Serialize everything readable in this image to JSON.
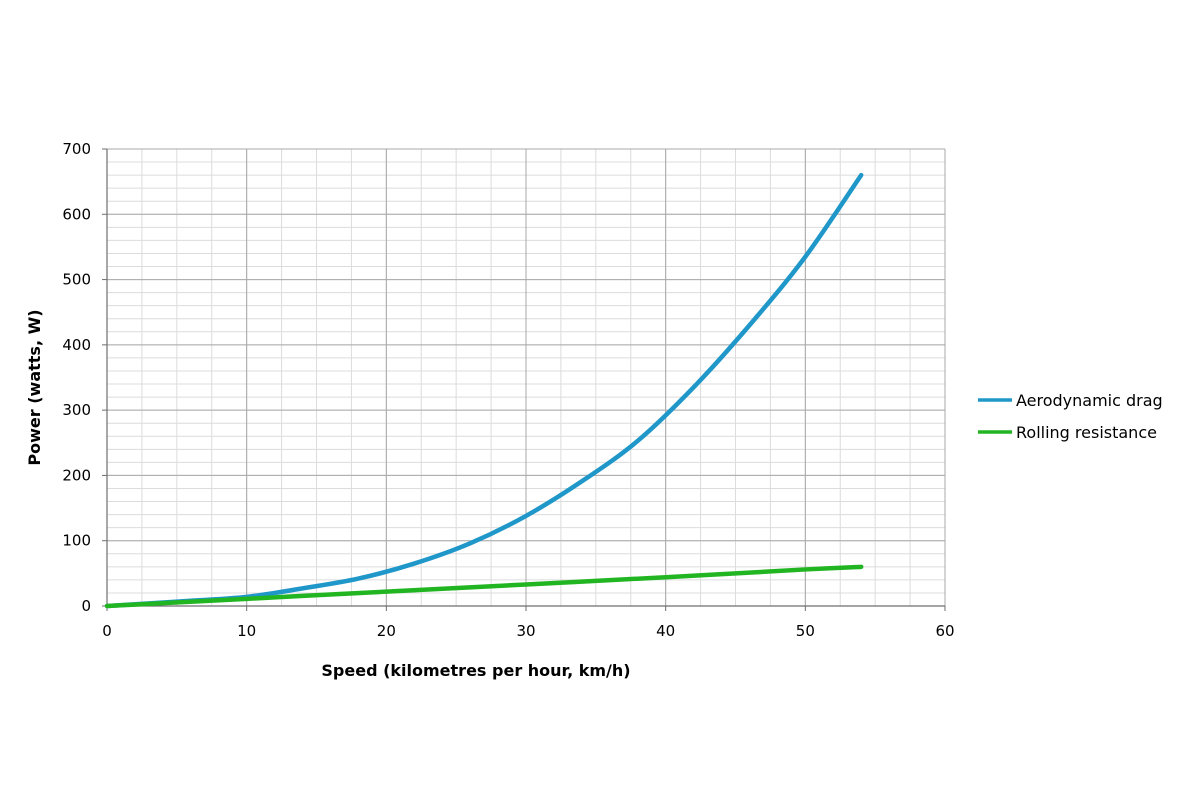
{
  "chart_data": {
    "type": "line",
    "title": "",
    "xlabel": "Speed (kilometres per hour, km/h)",
    "ylabel": "Power (watts, W)",
    "xlim": [
      0,
      60
    ],
    "ylim": [
      0,
      700
    ],
    "x_major_step": 10,
    "x_minor_step": 2.5,
    "y_major_step": 100,
    "y_minor_step": 20,
    "x_ticks": [
      "0",
      "10",
      "20",
      "30",
      "40",
      "50",
      "60"
    ],
    "y_ticks": [
      "0",
      "100",
      "200",
      "300",
      "400",
      "500",
      "600",
      "700"
    ],
    "grid": true,
    "legend_position": "right",
    "series": [
      {
        "name": "Aerodynamic drag",
        "color": "#1f97c9",
        "x": [
          0,
          6,
          10,
          14,
          18,
          22,
          26,
          30,
          34,
          38,
          42,
          46,
          50,
          54
        ],
        "y": [
          0,
          8,
          14,
          27,
          42,
          65,
          96,
          138,
          191,
          253,
          335,
          430,
          535,
          660
        ]
      },
      {
        "name": "Rolling resistance",
        "color": "#22b522",
        "x": [
          0,
          10,
          20,
          30,
          40,
          50,
          54
        ],
        "y": [
          0,
          11,
          22,
          33,
          44,
          56,
          60
        ]
      }
    ]
  }
}
